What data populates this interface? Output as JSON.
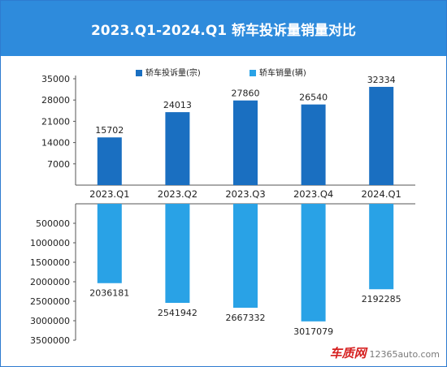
{
  "title": "2023.Q1-2024.Q1 轿车投诉量销量对比",
  "chart_data": {
    "type": "bar",
    "categories": [
      "2023.Q1",
      "2023.Q2",
      "2023.Q3",
      "2023.Q4",
      "2024.Q1"
    ],
    "series": [
      {
        "name": "轿车投诉量(宗)",
        "values": [
          15702,
          24013,
          27860,
          26540,
          32334
        ],
        "color": "#1a6fc1"
      },
      {
        "name": "轿车销量(辆)",
        "values": [
          2036181,
          2541942,
          2667332,
          3017079,
          2192285
        ],
        "color": "#29a2e6"
      }
    ],
    "upper_axis": {
      "ticks": [
        "35000",
        "28000",
        "21000",
        "14000",
        "7000"
      ],
      "ylim": [
        0,
        35000
      ]
    },
    "lower_axis": {
      "ticks": [
        "500000",
        "1000000",
        "1500000",
        "2000000",
        "2500000",
        "3000000",
        "3500000"
      ],
      "ylim": [
        0,
        3500000
      ],
      "inverted": true
    },
    "legend": "top",
    "grid": false
  },
  "watermark": {
    "logo": "车质网",
    "site": "12365auto.com"
  }
}
